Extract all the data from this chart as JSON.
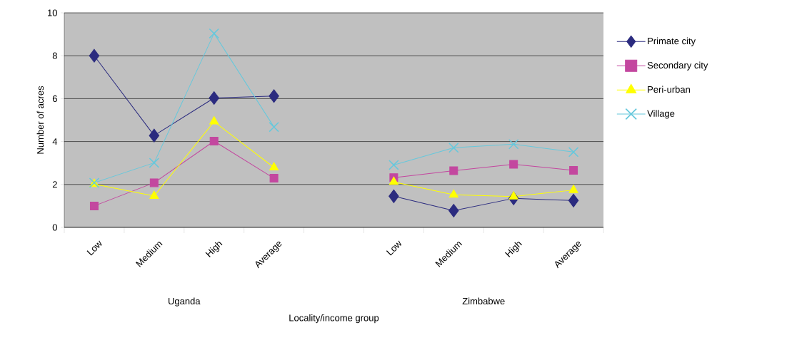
{
  "chart_data": {
    "type": "line",
    "xlabel": "Locality/income group",
    "ylabel": "Number of acres",
    "categories": [
      "Low",
      "Medium",
      "High",
      "Average",
      null,
      "Low",
      "Medium",
      "High",
      "Average"
    ],
    "annotations": [
      "Uganda",
      "Zimbabwe"
    ],
    "ylim": [
      0,
      10
    ],
    "yticks": [
      0,
      2,
      4,
      6,
      8,
      10
    ],
    "grid": "y",
    "legend": "right",
    "series": [
      {
        "name": "Primate city",
        "color": "#2b2b7f",
        "marker": "diamond",
        "values": [
          8.0,
          4.28,
          6.03,
          6.12,
          null,
          1.45,
          0.78,
          1.35,
          1.25
        ]
      },
      {
        "name": "Secondary city",
        "color": "#c3479f",
        "marker": "square",
        "values": [
          1.0,
          2.08,
          4.02,
          2.29,
          null,
          2.32,
          2.64,
          2.94,
          2.66
        ]
      },
      {
        "name": "Peri-urban",
        "color": "#ffff00",
        "marker": "triangle",
        "values": [
          2.02,
          1.46,
          4.93,
          2.79,
          null,
          2.12,
          1.52,
          1.44,
          1.74
        ]
      },
      {
        "name": "Village",
        "color": "#66c8dc",
        "marker": "cross",
        "values": [
          2.08,
          3.01,
          9.04,
          4.68,
          null,
          2.91,
          3.71,
          3.88,
          3.51
        ]
      }
    ]
  }
}
